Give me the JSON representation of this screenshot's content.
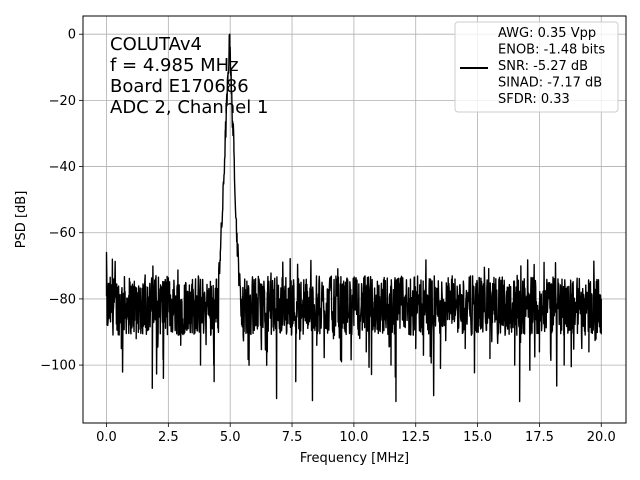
{
  "chart_data": {
    "type": "line",
    "xlabel": "Frequency [MHz]",
    "ylabel": "PSD [dB]",
    "xlim": [
      -0.95,
      21.0
    ],
    "ylim": [
      -117.5,
      5.5
    ],
    "xticks": [
      0.0,
      2.5,
      5.0,
      7.5,
      10.0,
      12.5,
      15.0,
      17.5,
      20.0
    ],
    "xtick_labels": [
      "0.0",
      "2.5",
      "5.0",
      "7.5",
      "10.0",
      "12.5",
      "15.0",
      "17.5",
      "20.0"
    ],
    "yticks": [
      0,
      -20,
      -40,
      -60,
      -80,
      -100
    ],
    "ytick_labels": [
      "0",
      "−20",
      "−40",
      "−60",
      "−80",
      "−100"
    ],
    "grid": true,
    "annotation_lines": [
      "COLUTAv4",
      "f = 4.985 MHz",
      "Board E170686",
      "ADC 2, Channel 1"
    ],
    "legend_position": "top-right",
    "legend_lines": [
      "AWG: 0.35 Vpp",
      "ENOB: -1.48 bits",
      "SNR: -5.27 dB",
      "SINAD: -7.17 dB",
      "SFDR: 0.33"
    ],
    "series": [
      {
        "color": "#000000",
        "peak_frequency": 4.985,
        "peak_value": 0,
        "noise_floor_mean": -82,
        "x_start": 0.0,
        "x_end": 20.0,
        "points": [
          [
            0.0,
            -66
          ],
          [
            0.05,
            -88
          ],
          [
            0.3,
            -74
          ],
          [
            0.6,
            -95
          ],
          [
            0.9,
            -79
          ],
          [
            1.2,
            -92
          ],
          [
            1.5,
            -76
          ],
          [
            1.85,
            -107
          ],
          [
            2.0,
            -73
          ],
          [
            2.3,
            -104
          ],
          [
            2.6,
            -85
          ],
          [
            3.0,
            -94
          ],
          [
            3.4,
            -78
          ],
          [
            3.8,
            -100
          ],
          [
            4.2,
            -83
          ],
          [
            4.35,
            -105
          ],
          [
            4.5,
            -78
          ],
          [
            4.6,
            -66
          ],
          [
            4.7,
            -52
          ],
          [
            4.8,
            -32
          ],
          [
            4.9,
            -15
          ],
          [
            4.985,
            0
          ],
          [
            5.05,
            -18
          ],
          [
            5.15,
            -35
          ],
          [
            5.25,
            -58
          ],
          [
            5.35,
            -72
          ],
          [
            5.5,
            -88
          ],
          [
            6.0,
            -82
          ],
          [
            6.5,
            -96
          ],
          [
            7.0,
            -80
          ],
          [
            7.65,
            -105
          ],
          [
            8.0,
            -83
          ],
          [
            8.5,
            -94
          ],
          [
            9.0,
            -79
          ],
          [
            9.5,
            -99
          ],
          [
            10.0,
            -84
          ],
          [
            10.5,
            -96
          ],
          [
            11.0,
            -79
          ],
          [
            11.5,
            -100
          ],
          [
            11.7,
            -111
          ],
          [
            12.0,
            -83
          ],
          [
            12.5,
            -95
          ],
          [
            13.0,
            -80
          ],
          [
            13.5,
            -101
          ],
          [
            14.0,
            -84
          ],
          [
            14.5,
            -95
          ],
          [
            15.0,
            -80
          ],
          [
            15.5,
            -98
          ],
          [
            16.0,
            -84
          ],
          [
            16.5,
            -100
          ],
          [
            16.7,
            -111
          ],
          [
            17.0,
            -83
          ],
          [
            17.5,
            -96
          ],
          [
            18.0,
            -80
          ],
          [
            18.5,
            -100
          ],
          [
            19.0,
            -84
          ],
          [
            19.5,
            -96
          ],
          [
            20.0,
            -80
          ]
        ]
      }
    ]
  }
}
